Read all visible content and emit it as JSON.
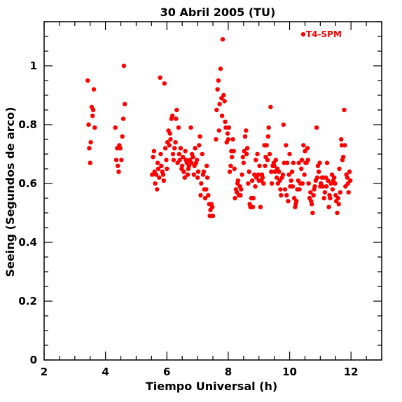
{
  "chart_data": {
    "type": "scatter",
    "title": "30 Abril 2005 (TU)",
    "xlabel": "Tiempo Universal (h)",
    "ylabel": "Seeing (Segundos de arco)",
    "xlim": [
      2,
      13
    ],
    "ylim": [
      0,
      1.15
    ],
    "xticks": [
      2,
      4,
      6,
      8,
      10,
      12
    ],
    "xtick_labels": [
      "2",
      "4",
      "6",
      "8",
      "10",
      "12"
    ],
    "yticks": [
      0,
      0.2,
      0.4,
      0.6,
      0.8,
      1
    ],
    "ytick_labels": [
      "0",
      "0.2",
      "0.4",
      "0.6",
      "0.8",
      "1"
    ],
    "grid": false,
    "legend": "top-right",
    "series": [
      {
        "name": "T4-SPM",
        "color": "#ff0000",
        "x": [
          3.42,
          3.45,
          3.47,
          3.5,
          3.52,
          3.55,
          3.58,
          3.6,
          3.62,
          3.65,
          4.32,
          4.35,
          4.38,
          4.4,
          4.43,
          4.45,
          4.48,
          4.52,
          4.55,
          4.58,
          4.6,
          4.63,
          5.52,
          5.55,
          5.58,
          5.6,
          5.62,
          5.65,
          5.68,
          5.7,
          5.72,
          5.75,
          5.78,
          5.8,
          5.82,
          5.85,
          5.88,
          5.9,
          5.92,
          5.95,
          5.98,
          6.0,
          6.02,
          6.05,
          6.08,
          6.1,
          6.12,
          6.15,
          6.18,
          6.2,
          6.22,
          6.25,
          6.28,
          6.3,
          6.32,
          6.35,
          6.38,
          6.4,
          6.42,
          6.45,
          6.48,
          6.5,
          6.52,
          6.55,
          6.58,
          6.6,
          6.62,
          6.65,
          6.68,
          6.7,
          6.72,
          6.75,
          6.78,
          6.8,
          6.82,
          6.85,
          6.88,
          6.9,
          6.92,
          6.95,
          6.98,
          7.0,
          7.02,
          7.05,
          7.08,
          7.1,
          7.12,
          7.15,
          7.18,
          7.2,
          7.22,
          7.25,
          7.28,
          7.3,
          7.32,
          7.35,
          7.38,
          7.4,
          7.42,
          7.45,
          7.48,
          7.5,
          7.6,
          7.62,
          7.65,
          7.68,
          7.7,
          7.72,
          7.75,
          7.78,
          7.8,
          7.82,
          7.85,
          7.88,
          7.9,
          7.92,
          7.95,
          7.98,
          8.0,
          8.02,
          8.05,
          8.08,
          8.1,
          8.12,
          8.15,
          8.18,
          8.2,
          8.22,
          8.25,
          8.28,
          8.3,
          8.32,
          8.35,
          8.38,
          8.4,
          8.42,
          8.45,
          8.48,
          8.5,
          8.52,
          8.55,
          8.58,
          8.6,
          8.62,
          8.65,
          8.68,
          8.7,
          8.72,
          8.75,
          8.78,
          8.8,
          8.82,
          8.85,
          8.88,
          8.9,
          8.92,
          8.95,
          8.98,
          9.0,
          9.02,
          9.05,
          9.08,
          9.1,
          9.12,
          9.15,
          9.18,
          9.2,
          9.22,
          9.25,
          9.28,
          9.3,
          9.32,
          9.35,
          9.38,
          9.4,
          9.42,
          9.45,
          9.48,
          9.5,
          9.52,
          9.55,
          9.58,
          9.6,
          9.62,
          9.65,
          9.68,
          9.7,
          9.72,
          9.75,
          9.78,
          9.8,
          9.82,
          9.85,
          9.88,
          9.9,
          9.92,
          9.95,
          9.98,
          10.0,
          10.02,
          10.05,
          10.08,
          10.1,
          10.12,
          10.15,
          10.18,
          10.2,
          10.22,
          10.25,
          10.28,
          10.3,
          10.32,
          10.35,
          10.38,
          10.4,
          10.42,
          10.45,
          10.48,
          10.5,
          10.52,
          10.55,
          10.58,
          10.6,
          10.62,
          10.65,
          10.68,
          10.7,
          10.72,
          10.75,
          10.78,
          10.8,
          10.82,
          10.85,
          10.88,
          10.9,
          10.92,
          10.95,
          10.98,
          11.0,
          11.02,
          11.05,
          11.08,
          11.1,
          11.12,
          11.15,
          11.18,
          11.2,
          11.22,
          11.25,
          11.28,
          11.3,
          11.32,
          11.35,
          11.38,
          11.4,
          11.42,
          11.45,
          11.48,
          11.5,
          11.52,
          11.55,
          11.58,
          11.6,
          11.62,
          11.65,
          11.68,
          11.7,
          11.72,
          11.75,
          11.78,
          11.8,
          11.82,
          11.85,
          11.88,
          11.9,
          11.92,
          11.95,
          11.98
        ],
        "y": [
          0.95,
          0.8,
          0.72,
          0.67,
          0.74,
          0.86,
          0.83,
          0.85,
          0.92,
          0.79,
          0.79,
          0.68,
          0.72,
          0.66,
          0.64,
          0.73,
          0.72,
          0.68,
          0.76,
          0.82,
          1.0,
          0.87,
          0.63,
          0.69,
          0.71,
          0.64,
          0.6,
          0.63,
          0.58,
          0.67,
          0.65,
          0.62,
          0.96,
          0.7,
          0.66,
          0.64,
          0.63,
          0.61,
          0.94,
          0.72,
          0.68,
          0.65,
          0.74,
          0.78,
          0.73,
          0.77,
          0.75,
          0.82,
          0.83,
          0.7,
          0.68,
          0.72,
          0.74,
          0.82,
          0.85,
          0.67,
          0.79,
          0.7,
          0.68,
          0.72,
          0.65,
          0.66,
          0.69,
          0.64,
          0.62,
          0.71,
          0.68,
          0.67,
          0.63,
          0.65,
          0.66,
          0.68,
          0.79,
          0.67,
          0.7,
          0.69,
          0.63,
          0.66,
          0.72,
          0.67,
          0.68,
          0.62,
          0.64,
          0.73,
          0.76,
          0.56,
          0.6,
          0.7,
          0.63,
          0.64,
          0.58,
          0.55,
          0.58,
          0.66,
          0.62,
          0.56,
          0.53,
          0.49,
          0.51,
          0.53,
          0.52,
          0.49,
          0.75,
          0.85,
          0.92,
          0.95,
          0.78,
          0.87,
          0.99,
          0.89,
          0.83,
          1.09,
          0.9,
          0.88,
          0.81,
          0.79,
          0.74,
          0.77,
          0.75,
          0.79,
          0.64,
          0.66,
          0.71,
          0.69,
          0.75,
          0.71,
          0.65,
          0.55,
          0.58,
          0.57,
          0.6,
          0.61,
          0.56,
          0.59,
          0.56,
          0.58,
          0.63,
          0.69,
          0.67,
          0.71,
          0.76,
          0.78,
          0.7,
          0.72,
          0.6,
          0.64,
          0.53,
          0.52,
          0.55,
          0.61,
          0.52,
          0.55,
          0.63,
          0.59,
          0.68,
          0.62,
          0.7,
          0.63,
          0.61,
          0.66,
          0.52,
          0.61,
          0.63,
          0.62,
          0.6,
          0.73,
          0.66,
          0.69,
          0.73,
          0.68,
          0.76,
          0.79,
          0.7,
          0.86,
          0.64,
          0.6,
          0.66,
          0.67,
          0.66,
          0.64,
          0.68,
          0.62,
          0.65,
          0.6,
          0.64,
          0.61,
          0.58,
          0.56,
          0.62,
          0.63,
          0.8,
          0.67,
          0.58,
          0.73,
          0.56,
          0.67,
          0.54,
          0.63,
          0.7,
          0.59,
          0.61,
          0.64,
          0.59,
          0.67,
          0.55,
          0.52,
          0.53,
          0.54,
          0.58,
          0.61,
          0.67,
          0.58,
          0.6,
          0.65,
          0.68,
          0.6,
          0.73,
          0.63,
          0.71,
          0.67,
          0.67,
          0.72,
          0.68,
          0.6,
          0.55,
          0.57,
          0.54,
          0.53,
          0.5,
          0.56,
          0.58,
          0.59,
          0.61,
          0.79,
          0.62,
          0.66,
          0.64,
          0.67,
          0.59,
          0.6,
          0.62,
          0.59,
          0.62,
          0.55,
          0.57,
          0.62,
          0.59,
          0.67,
          0.61,
          0.52,
          0.56,
          0.55,
          0.6,
          0.63,
          0.58,
          0.61,
          0.62,
          0.6,
          0.56,
          0.54,
          0.5,
          0.55,
          0.53,
          0.65,
          0.57,
          0.75,
          0.73,
          0.68,
          0.69,
          0.85,
          0.73,
          0.59,
          0.63,
          0.62,
          0.6,
          0.57,
          0.64,
          0.61
        ]
      }
    ]
  }
}
